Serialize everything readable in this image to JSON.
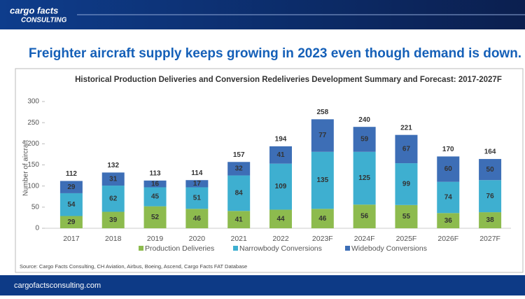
{
  "header": {
    "logo_top": "cargo facts",
    "logo_bottom": "CONSULTING"
  },
  "headline": "Freighter aircraft supply keeps growing in 2023 even though demand is down.",
  "footer": "cargofactsconsulting.com",
  "chart_data": {
    "type": "stacked_bar",
    "title": "Historical Production Deliveries and Conversion Redeliveries Development Summary and Forecast: 2017-2027F",
    "y_label": "Number of aircraft",
    "categories": [
      "2017",
      "2018",
      "2019",
      "2020",
      "2021",
      "2022",
      "2023F",
      "2024F",
      "2025F",
      "2026F",
      "2027F"
    ],
    "series": [
      {
        "name": "Production Deliveries",
        "color": "#8dbb4e",
        "values": [
          29,
          39,
          52,
          46,
          41,
          44,
          46,
          56,
          55,
          36,
          38
        ]
      },
      {
        "name": "Narrowbody Conversions",
        "color": "#3eafd0",
        "values": [
          54,
          62,
          45,
          51,
          84,
          109,
          135,
          125,
          99,
          74,
          76
        ]
      },
      {
        "name": "Widebody Conversions",
        "color": "#3d6eb6",
        "values": [
          29,
          31,
          16,
          17,
          32,
          41,
          77,
          59,
          67,
          60,
          50
        ]
      }
    ],
    "totals": [
      112,
      132,
      113,
      114,
      157,
      194,
      258,
      240,
      221,
      170,
      164
    ],
    "ylim": [
      0,
      300
    ],
    "yticks": [
      0,
      50,
      100,
      150,
      200,
      250,
      300
    ],
    "grid": false,
    "source": "Source: Cargo Facts Consulting, CH Aviation, Airbus, Boeing, Ascend, Cargo Facts FAT Database"
  }
}
